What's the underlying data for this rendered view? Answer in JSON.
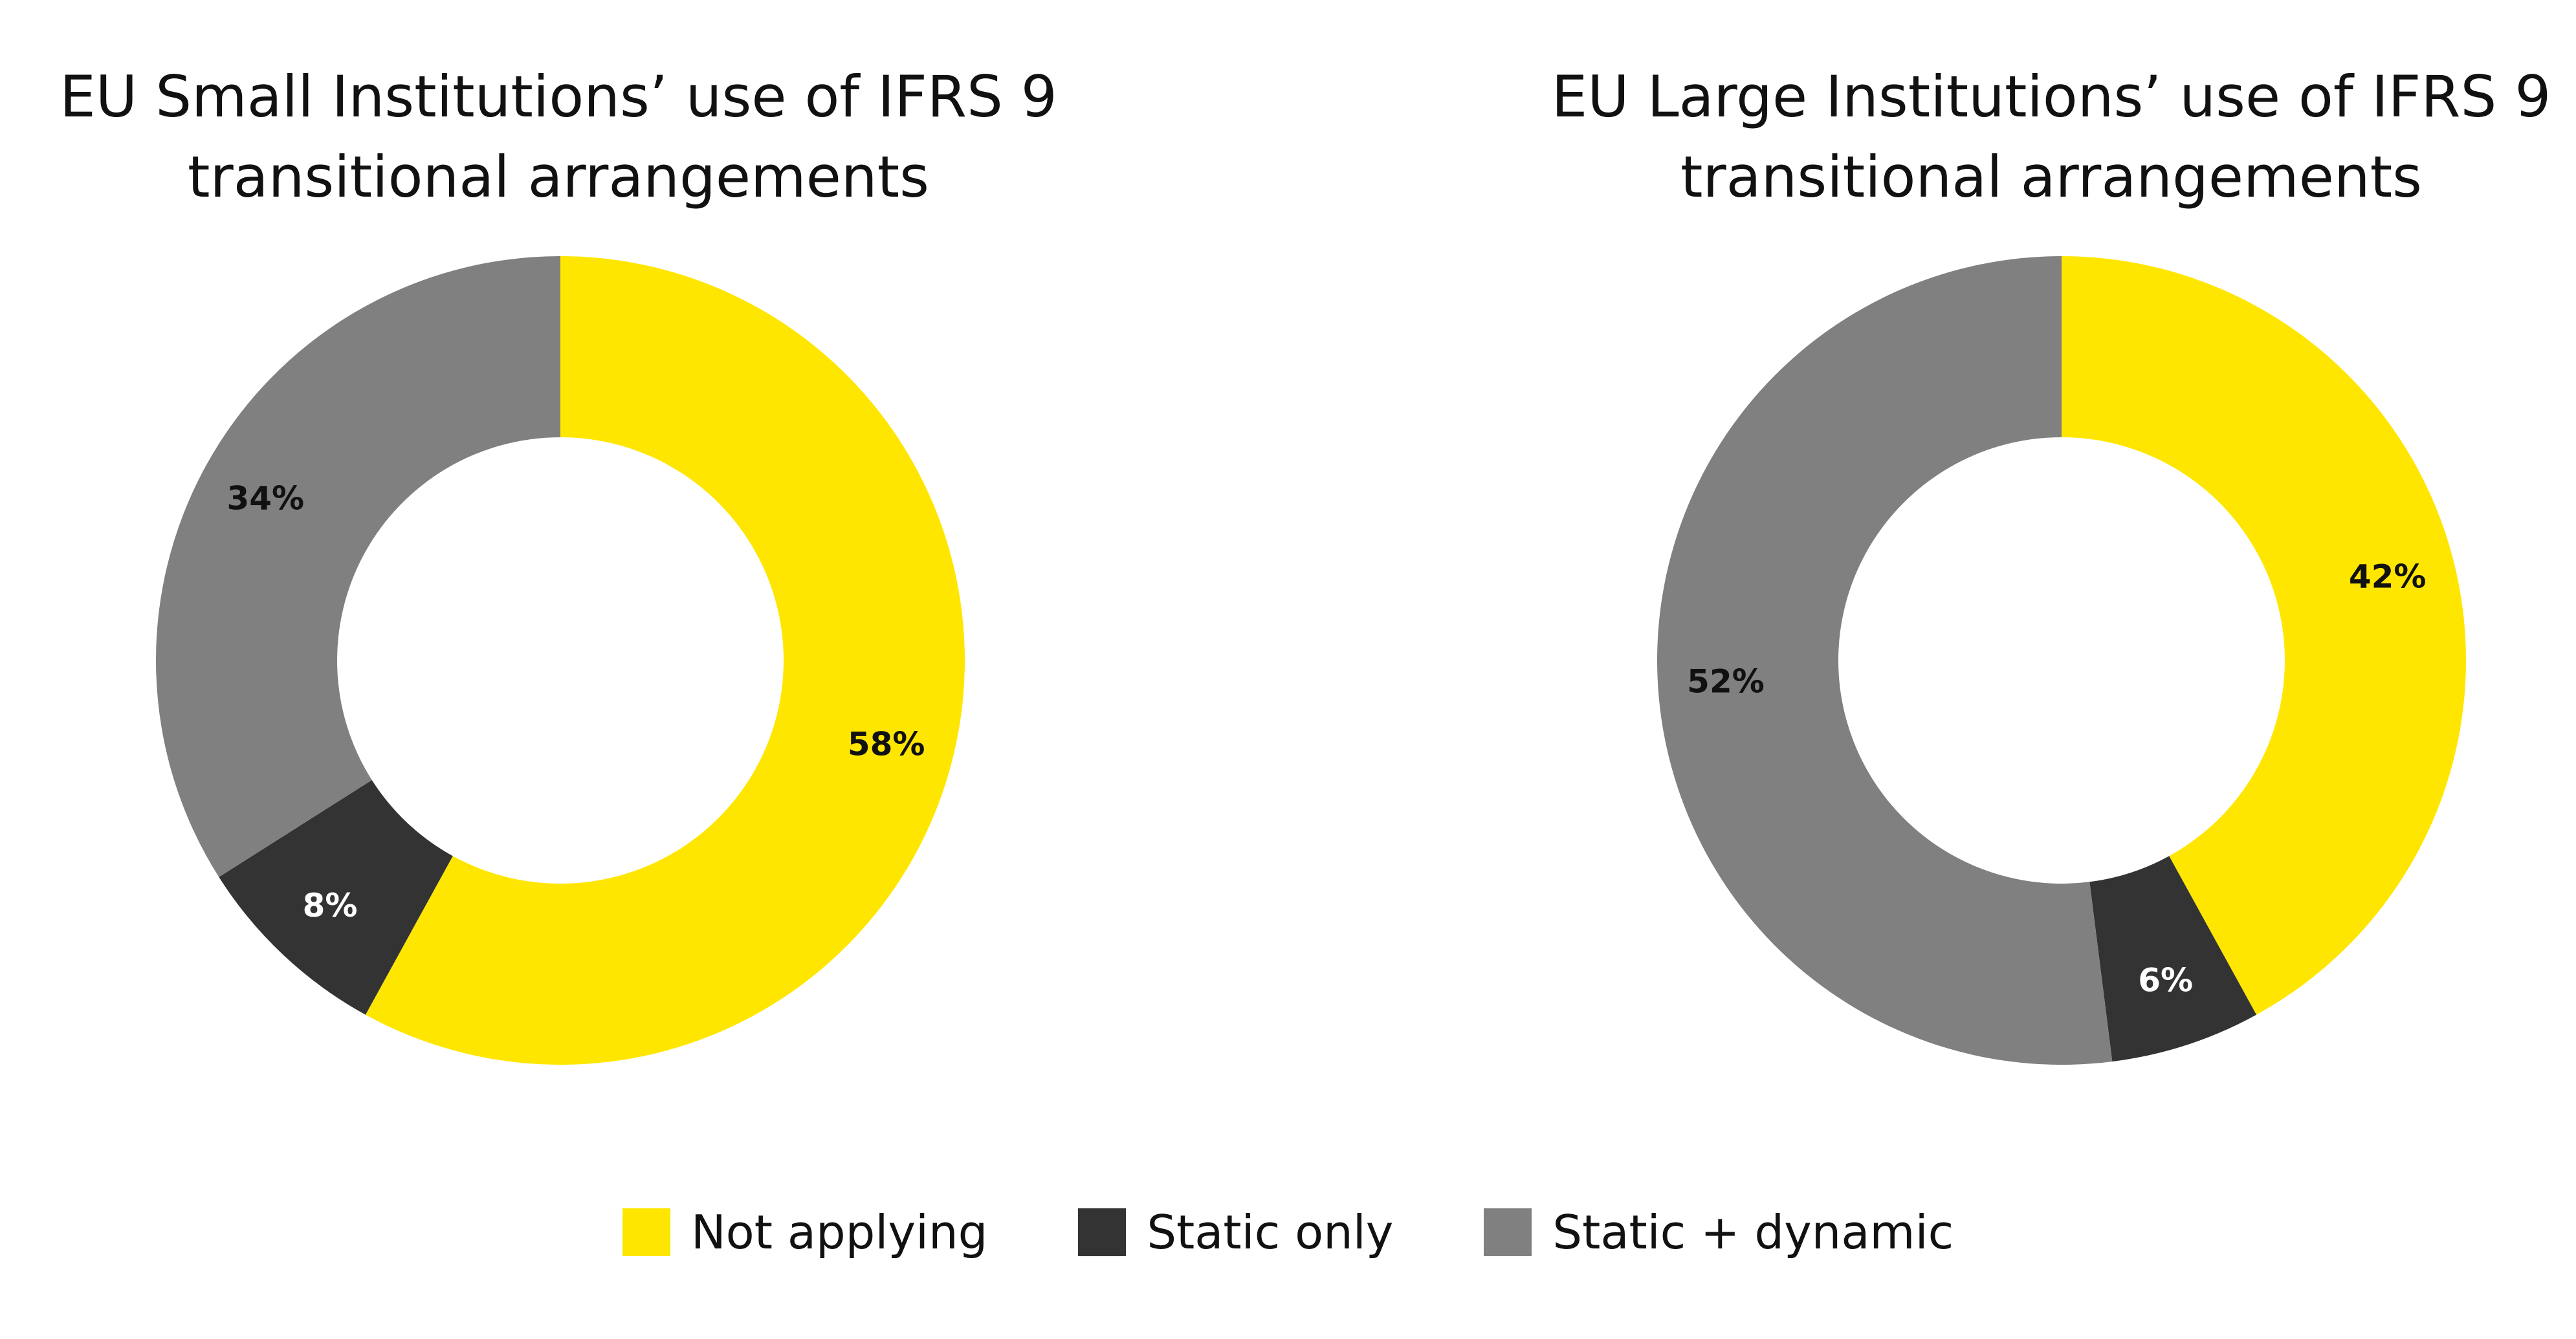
{
  "chart_data": [
    {
      "type": "pie",
      "style": "donut",
      "title": "EU Small Institutions’ use of IFRS 9\ntransitional arrangements",
      "categories": [
        "Not applying",
        "Static only",
        "Static + dynamic"
      ],
      "values": [
        58,
        8,
        34
      ],
      "labels": [
        "58%",
        "8%",
        "34%"
      ],
      "colors": [
        "#FFE600",
        "#333333",
        "#808080"
      ],
      "label_colors": [
        "#111111",
        "#ffffff",
        "#111111"
      ],
      "start_angle": "12 o'clock",
      "direction": "clockwise"
    },
    {
      "type": "pie",
      "style": "donut",
      "title": "EU Large Institutions’ use of IFRS 9\ntransitional arrangements",
      "categories": [
        "Not applying",
        "Static only",
        "Static + dynamic"
      ],
      "values": [
        42,
        6,
        52
      ],
      "labels": [
        "42%",
        "6%",
        "52%"
      ],
      "colors": [
        "#FFE600",
        "#333333",
        "#808080"
      ],
      "label_colors": [
        "#111111",
        "#ffffff",
        "#111111"
      ],
      "start_angle": "12 o'clock",
      "direction": "clockwise"
    }
  ],
  "legend": {
    "placement": "bottom-center",
    "items": [
      {
        "label": "Not applying",
        "color": "#FFE600"
      },
      {
        "label": "Static only",
        "color": "#333333"
      },
      {
        "label": "Static + dynamic",
        "color": "#808080"
      }
    ]
  }
}
